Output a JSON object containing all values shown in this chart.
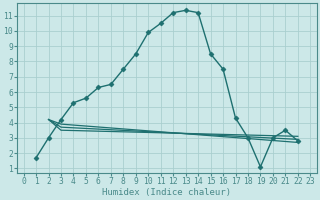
{
  "xlabel": "Humidex (Indice chaleur)",
  "background_color": "#cce8e8",
  "grid_color": "#aacfcf",
  "line_color": "#1e7070",
  "xlim": [
    -0.5,
    23.5
  ],
  "ylim": [
    0.7,
    11.8
  ],
  "xticks": [
    0,
    1,
    2,
    3,
    4,
    5,
    6,
    7,
    8,
    9,
    10,
    11,
    12,
    13,
    14,
    15,
    16,
    17,
    18,
    19,
    20,
    21,
    22,
    23
  ],
  "yticks": [
    1,
    2,
    3,
    4,
    5,
    6,
    7,
    8,
    9,
    10,
    11
  ],
  "series": [
    {
      "x": [
        1,
        2,
        3,
        4,
        5,
        6,
        7,
        8,
        9,
        10,
        11,
        12,
        13,
        14,
        15,
        16,
        17,
        18,
        19,
        20,
        21,
        22
      ],
      "y": [
        1.7,
        3.0,
        4.2,
        5.3,
        5.6,
        6.3,
        6.5,
        7.5,
        8.5,
        9.9,
        10.5,
        11.2,
        11.35,
        11.2,
        8.5,
        7.5,
        4.3,
        3.0,
        1.1,
        3.0,
        3.5,
        2.8
      ],
      "marker": "D",
      "markersize": 2.5,
      "lw": 1.0
    },
    {
      "x": [
        2,
        3,
        22
      ],
      "y": [
        4.2,
        3.5,
        3.1
      ],
      "marker": null,
      "markersize": 0,
      "lw": 0.9
    },
    {
      "x": [
        2,
        3,
        22
      ],
      "y": [
        4.2,
        3.7,
        2.9
      ],
      "marker": null,
      "markersize": 0,
      "lw": 0.9
    },
    {
      "x": [
        2,
        3,
        22
      ],
      "y": [
        4.2,
        3.9,
        2.7
      ],
      "marker": null,
      "markersize": 0,
      "lw": 0.9
    }
  ],
  "xlabel_fontsize": 6.5,
  "tick_fontsize": 5.8,
  "spine_color": "#4a8a8a"
}
